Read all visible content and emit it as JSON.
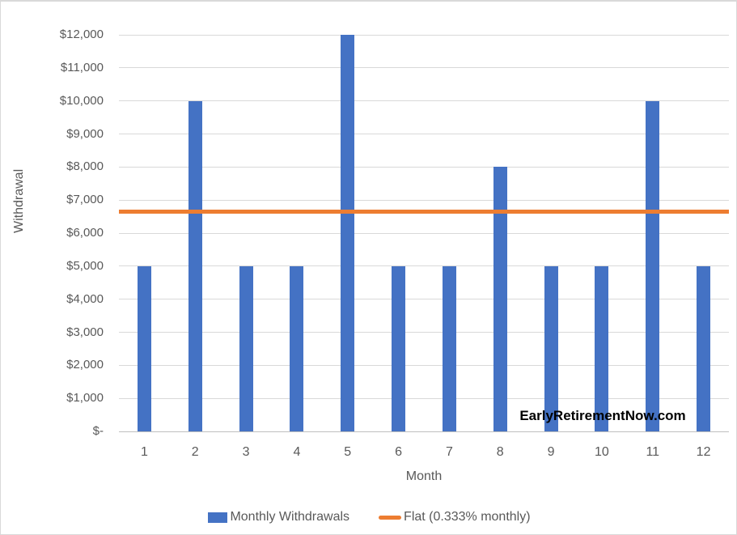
{
  "watermark": {
    "text": "EarlyRetirementNow.com"
  },
  "colors": {
    "bar_blue": "#4472C4",
    "line_orange": "#ED7D31",
    "gridline": "#D9D9D9",
    "axis_text": "#595959"
  },
  "chart_data": {
    "type": "bar",
    "title": "",
    "xlabel": "Month",
    "ylabel": "Withdrawal",
    "categories": [
      "1",
      "2",
      "3",
      "4",
      "5",
      "6",
      "7",
      "8",
      "9",
      "10",
      "11",
      "12"
    ],
    "series": [
      {
        "name": "Monthly Withdrawals",
        "type": "bar",
        "color": "#4472C4",
        "values": [
          5000,
          10000,
          5000,
          5000,
          12000,
          5000,
          5000,
          8000,
          5000,
          5000,
          10000,
          5000
        ]
      },
      {
        "name": "Flat (0.333% monthly)",
        "type": "flat-line",
        "color": "#ED7D31",
        "value": 6660
      }
    ],
    "ylim": [
      0,
      12000
    ],
    "ytick_step": 1000,
    "ytick_labels": [
      "$-",
      "$1,000",
      "$2,000",
      "$3,000",
      "$4,000",
      "$5,000",
      "$6,000",
      "$7,000",
      "$8,000",
      "$9,000",
      "$10,000",
      "$11,000",
      "$12,000"
    ],
    "grid": true,
    "legend_position": "bottom"
  }
}
